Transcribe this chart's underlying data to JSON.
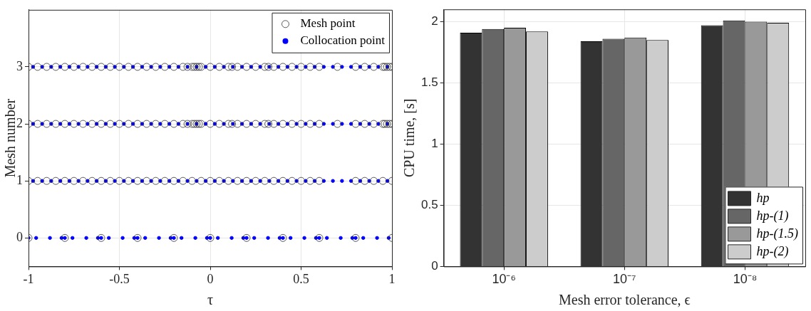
{
  "chart_data": [
    {
      "type": "scatter",
      "xlabel": "τ",
      "ylabel": "Mesh number",
      "xlim": [
        -1,
        1
      ],
      "xticks": [
        -1,
        -0.5,
        0,
        0.5,
        1
      ],
      "ylim": [
        -0.5,
        4
      ],
      "yticks": [
        0,
        1,
        2,
        3
      ],
      "grid": true,
      "legend": "top right",
      "marker": "circle",
      "series": [
        {
          "name": "Mesh point",
          "color": "#333333",
          "x": [
            -1,
            -0.8,
            -0.6,
            -0.4,
            -0.2,
            0,
            0.2,
            0.4,
            0.6,
            0.8,
            1,
            -1,
            -0.95,
            -0.9,
            -0.85,
            -0.8,
            -0.75,
            -0.7,
            -0.65,
            -0.6,
            -0.55,
            -0.5,
            -0.45,
            -0.4,
            -0.35,
            -0.3,
            -0.25,
            -0.2,
            -0.15,
            -0.1,
            -0.05,
            0,
            0.05,
            0.1,
            0.15,
            0.2,
            0.25,
            0.3,
            0.35,
            0.4,
            0.45,
            0.5,
            0.55,
            0.6,
            0.8,
            0.85,
            0.9,
            0.95,
            1,
            -1,
            -0.95,
            -0.9,
            -0.85,
            -0.8,
            -0.75,
            -0.7,
            -0.65,
            -0.6,
            -0.55,
            -0.5,
            -0.45,
            -0.4,
            -0.35,
            -0.3,
            -0.25,
            -0.2,
            -0.15,
            -0.125,
            -0.1,
            -0.0875,
            -0.075,
            -0.0625,
            -0.05,
            0,
            0.05,
            0.1,
            0.12,
            0.15,
            0.2,
            0.25,
            0.3,
            0.32,
            0.35,
            0.4,
            0.45,
            0.5,
            0.55,
            0.6,
            0.7,
            0.8,
            0.85,
            0.9,
            0.95,
            0.96,
            0.973,
            0.986,
            1,
            -1,
            -0.95,
            -0.9,
            -0.85,
            -0.8,
            -0.75,
            -0.7,
            -0.65,
            -0.6,
            -0.55,
            -0.5,
            -0.45,
            -0.4,
            -0.35,
            -0.3,
            -0.25,
            -0.2,
            -0.15,
            -0.125,
            -0.1,
            -0.0875,
            -0.075,
            -0.0625,
            -0.05,
            0,
            0.05,
            0.1,
            0.12,
            0.15,
            0.2,
            0.25,
            0.3,
            0.32,
            0.35,
            0.4,
            0.45,
            0.5,
            0.55,
            0.6,
            0.7,
            0.8,
            0.85,
            0.9,
            0.95,
            0.96,
            0.973,
            0.986,
            1
          ],
          "values": [
            0,
            0,
            0,
            0,
            0,
            0,
            0,
            0,
            0,
            0,
            0,
            1,
            1,
            1,
            1,
            1,
            1,
            1,
            1,
            1,
            1,
            1,
            1,
            1,
            1,
            1,
            1,
            1,
            1,
            1,
            1,
            1,
            1,
            1,
            1,
            1,
            1,
            1,
            1,
            1,
            1,
            1,
            1,
            1,
            1,
            1,
            1,
            1,
            1,
            2,
            2,
            2,
            2,
            2,
            2,
            2,
            2,
            2,
            2,
            2,
            2,
            2,
            2,
            2,
            2,
            2,
            2,
            2,
            2,
            2,
            2,
            2,
            2,
            2,
            2,
            2,
            2,
            2,
            2,
            2,
            2,
            2,
            2,
            2,
            2,
            2,
            2,
            2,
            2,
            2,
            2,
            2,
            2,
            2,
            2,
            2,
            2,
            3,
            3,
            3,
            3,
            3,
            3,
            3,
            3,
            3,
            3,
            3,
            3,
            3,
            3,
            3,
            3,
            3,
            3,
            3,
            3,
            3,
            3,
            3,
            3,
            3,
            3,
            3,
            3,
            3,
            3,
            3,
            3,
            3,
            3,
            3,
            3,
            3,
            3,
            3,
            3,
            3,
            3,
            3,
            3,
            3,
            3,
            3,
            3
          ]
        },
        {
          "name": "Collocation point",
          "color": "#0000ff",
          "x": [
            -1,
            -0.958,
            -0.882,
            -0.818,
            -0.8,
            -0.758,
            -0.682,
            -0.618,
            -0.6,
            -0.558,
            -0.482,
            -0.418,
            -0.4,
            -0.358,
            -0.282,
            -0.218,
            -0.2,
            -0.158,
            -0.082,
            -0.018,
            0,
            0.042,
            0.118,
            0.182,
            0.2,
            0.242,
            0.318,
            0.382,
            0.4,
            0.442,
            0.518,
            0.582,
            0.6,
            0.642,
            0.718,
            0.782,
            0.8,
            0.842,
            0.918,
            0.982,
            -0.975,
            -0.925,
            -0.875,
            -0.825,
            -0.775,
            -0.725,
            -0.675,
            -0.625,
            -0.575,
            -0.525,
            -0.475,
            -0.425,
            -0.375,
            -0.325,
            -0.275,
            -0.225,
            -0.175,
            -0.125,
            -0.075,
            -0.025,
            0.025,
            0.075,
            0.125,
            0.175,
            0.225,
            0.275,
            0.325,
            0.375,
            0.425,
            0.475,
            0.525,
            0.575,
            0.625,
            0.675,
            0.725,
            0.775,
            0.825,
            0.875,
            0.925,
            0.975,
            -0.975,
            -0.925,
            -0.875,
            -0.825,
            -0.775,
            -0.725,
            -0.675,
            -0.625,
            -0.575,
            -0.525,
            -0.475,
            -0.425,
            -0.375,
            -0.325,
            -0.275,
            -0.225,
            -0.175,
            -0.125,
            -0.075,
            -0.025,
            0.025,
            0.075,
            0.125,
            0.175,
            0.225,
            0.275,
            0.325,
            0.375,
            0.425,
            0.475,
            0.525,
            0.575,
            0.625,
            0.675,
            0.725,
            0.775,
            0.825,
            0.875,
            0.925,
            0.975,
            -0.975,
            -0.925,
            -0.875,
            -0.825,
            -0.775,
            -0.725,
            -0.675,
            -0.625,
            -0.575,
            -0.525,
            -0.475,
            -0.425,
            -0.375,
            -0.325,
            -0.275,
            -0.225,
            -0.175,
            -0.125,
            -0.075,
            -0.025,
            0.025,
            0.075,
            0.125,
            0.175,
            0.225,
            0.275,
            0.325,
            0.375,
            0.425,
            0.475,
            0.525,
            0.575,
            0.625,
            0.675,
            0.725,
            0.775,
            0.825,
            0.875,
            0.925,
            0.975
          ],
          "values": [
            0,
            0,
            0,
            0,
            0,
            0,
            0,
            0,
            0,
            0,
            0,
            0,
            0,
            0,
            0,
            0,
            0,
            0,
            0,
            0,
            0,
            0,
            0,
            0,
            0,
            0,
            0,
            0,
            0,
            0,
            0,
            0,
            0,
            0,
            0,
            0,
            0,
            0,
            0,
            0,
            1,
            1,
            1,
            1,
            1,
            1,
            1,
            1,
            1,
            1,
            1,
            1,
            1,
            1,
            1,
            1,
            1,
            1,
            1,
            1,
            1,
            1,
            1,
            1,
            1,
            1,
            1,
            1,
            1,
            1,
            1,
            1,
            1,
            1,
            1,
            1,
            1,
            1,
            1,
            1,
            2,
            2,
            2,
            2,
            2,
            2,
            2,
            2,
            2,
            2,
            2,
            2,
            2,
            2,
            2,
            2,
            2,
            2,
            2,
            2,
            2,
            2,
            2,
            2,
            2,
            2,
            2,
            2,
            2,
            2,
            2,
            2,
            2,
            2,
            2,
            2,
            2,
            2,
            2,
            2,
            3,
            3,
            3,
            3,
            3,
            3,
            3,
            3,
            3,
            3,
            3,
            3,
            3,
            3,
            3,
            3,
            3,
            3,
            3,
            3,
            3,
            3,
            3,
            3,
            3,
            3,
            3,
            3,
            3,
            3,
            3,
            3,
            3,
            3,
            3,
            3,
            3,
            3,
            3,
            3
          ]
        }
      ]
    },
    {
      "type": "bar",
      "xlabel": "Mesh error tolerance, ϵ",
      "ylabel": "CPU time, [s]",
      "categories": [
        "10⁻⁶",
        "10⁻⁷",
        "10⁻⁸"
      ],
      "ylim": [
        0,
        2.1
      ],
      "yticks": [
        0,
        0.5,
        1,
        1.5,
        2
      ],
      "grid": true,
      "legend": "bottom right",
      "series": [
        {
          "name": "hp",
          "color": "#333333",
          "values": [
            1.91,
            1.84,
            1.97
          ]
        },
        {
          "name": "hp-(1)",
          "color": "#666666",
          "values": [
            1.94,
            1.86,
            2.01
          ]
        },
        {
          "name": "hp-(1.5)",
          "color": "#999999",
          "values": [
            1.95,
            1.87,
            2.0
          ]
        },
        {
          "name": "hp-(2)",
          "color": "#cccccc",
          "values": [
            1.92,
            1.85,
            1.99
          ]
        }
      ]
    }
  ]
}
